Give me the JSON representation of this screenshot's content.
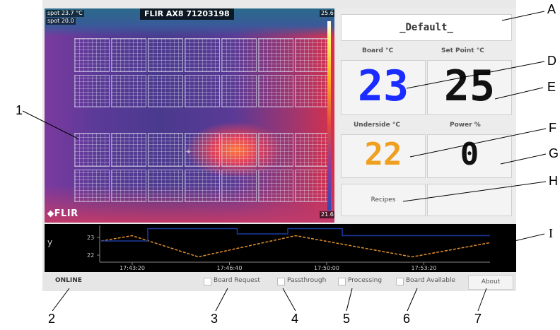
{
  "camera": {
    "title": "FLIR AX8 71203198",
    "spot1_label": "spot",
    "spot1_value": "23.7 °C",
    "spot2_label": "spot",
    "spot2_value": "20.0",
    "scale_max": "25.6",
    "scale_min": "21.6",
    "logo": "FLIR"
  },
  "panel": {
    "recipe_name": "_Default_",
    "board_label": "Board °C",
    "board_value": "23",
    "setpoint_label": "Set Point °C",
    "setpoint_value": "25",
    "underside_label": "Underside °C",
    "underside_value": "22",
    "power_label": "Power %",
    "power_value": "0",
    "recipes_button": "Recipes",
    "board_color": "#1a2cff",
    "setpoint_color": "#111111",
    "underside_color": "#f0a020",
    "power_color": "#111111"
  },
  "chart_data": {
    "type": "line",
    "ylabel": "y",
    "y_ticks": [
      "23",
      "22"
    ],
    "x_ticks": [
      "17:43:20",
      "17:46:40",
      "17:50:00",
      "17:53:20"
    ],
    "ylim": [
      21.6,
      23.6
    ],
    "series": [
      {
        "color": "#e09030",
        "x": [
          0,
          0.08,
          0.25,
          0.5,
          0.8,
          1.0
        ],
        "y": [
          22.8,
          23.1,
          21.9,
          23.1,
          21.9,
          22.7
        ]
      },
      {
        "color": "#1a3aa0",
        "x": [
          0,
          0.1,
          0.12,
          0.3,
          0.35,
          0.43,
          0.48,
          0.57,
          0.62,
          1.0
        ],
        "y": [
          22.8,
          22.8,
          23.5,
          23.5,
          23.2,
          23.2,
          23.5,
          23.5,
          23.1,
          23.1
        ]
      }
    ]
  },
  "status": {
    "online": "ONLINE",
    "board_request": "Board Request",
    "passthrough": "Passthrough",
    "processing": "Processing",
    "board_available": "Board Available",
    "about": "About"
  },
  "annotations": {
    "A": "A",
    "D": "D",
    "E": "E",
    "F": "F",
    "G": "G",
    "H": "H",
    "I": "I",
    "n1": "1",
    "n2": "2",
    "n3": "3",
    "n4": "4",
    "n5": "5",
    "n6": "6",
    "n7": "7"
  }
}
